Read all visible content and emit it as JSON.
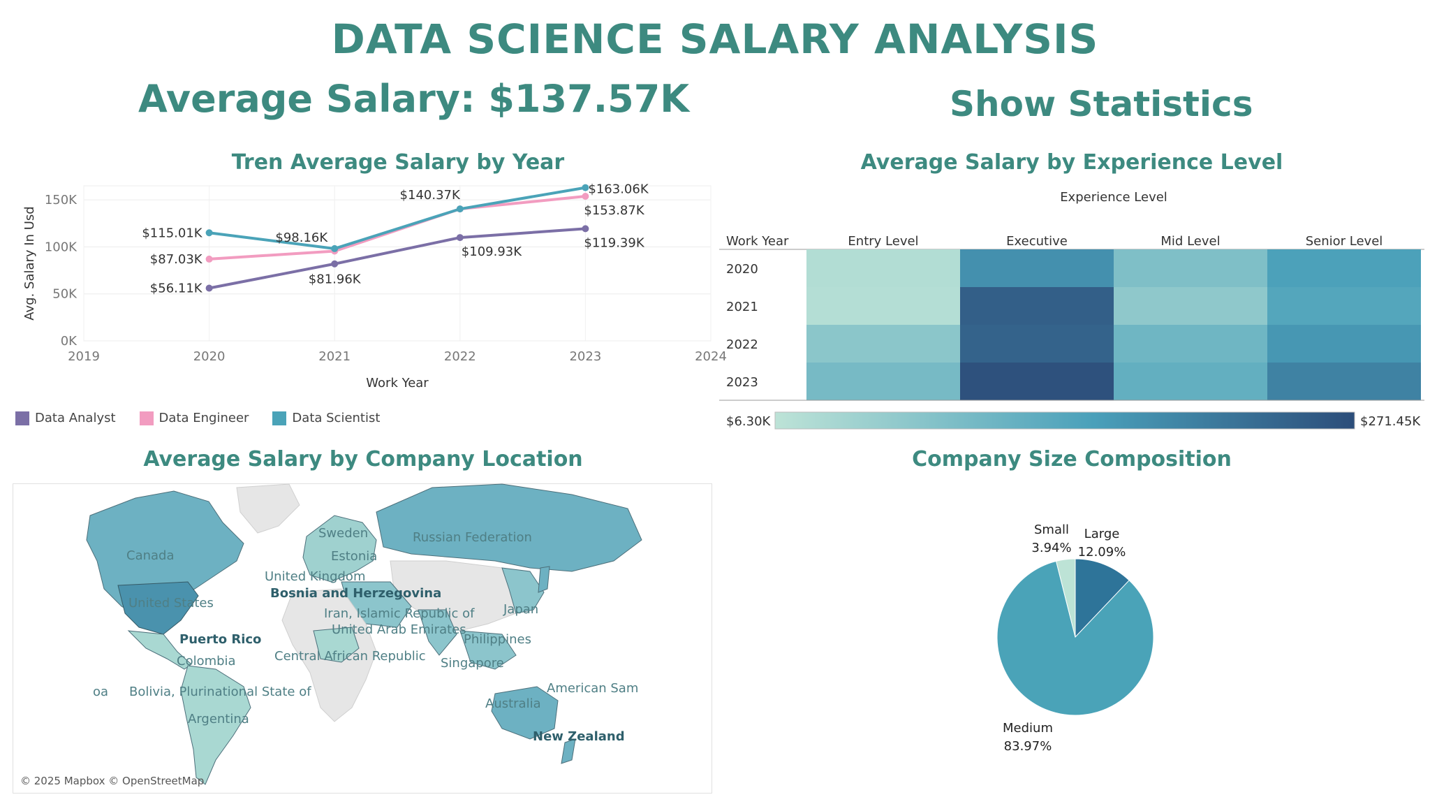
{
  "title": "DATA SCIENCE SALARY ANALYSIS",
  "kpi": {
    "average_salary": "Average Salary: $137.57K"
  },
  "show_statistics": "Show Statistics",
  "colors": {
    "accent": "#3d8a80",
    "data_analyst": "#7b6fa6",
    "data_engineer": "#f29cc0",
    "data_scientist": "#4aa3b8"
  },
  "chart_data": [
    {
      "type": "line",
      "title": "Tren Average Salary by Year",
      "xlabel": "Work Year",
      "ylabel": "Avg. Salary In Usd",
      "x_ticks": [
        "2019",
        "2020",
        "2021",
        "2022",
        "2023",
        "2024"
      ],
      "y_ticks": [
        "0K",
        "50K",
        "100K",
        "150K"
      ],
      "xlim": [
        2019,
        2024
      ],
      "ylim": [
        0,
        165
      ],
      "x": [
        2020,
        2021,
        2022,
        2023
      ],
      "series": [
        {
          "name": "Data Analyst",
          "values": [
            56.11,
            81.96,
            109.93,
            119.39
          ],
          "labels": [
            "$56.11K",
            "$81.96K",
            "$109.93K",
            "$119.39K"
          ],
          "color": "#7b6fa6"
        },
        {
          "name": "Data Engineer",
          "values": [
            87.03,
            95.5,
            140.37,
            153.87
          ],
          "labels": [
            "$87.03K",
            "",
            "",
            "$153.87K"
          ],
          "color": "#f29cc0"
        },
        {
          "name": "Data Scientist",
          "values": [
            115.01,
            98.16,
            140.37,
            163.06
          ],
          "labels": [
            "$115.01K",
            "$98.16K",
            "$140.37K",
            "$163.06K"
          ],
          "color": "#4aa3b8"
        }
      ],
      "legend": "bottom"
    },
    {
      "type": "heatmap",
      "title": "Average Salary by Experience Level",
      "column_header": "Experience Level",
      "row_header": "Work Year",
      "columns": [
        "Entry Level",
        "Executive",
        "Mid Level",
        "Senior Level"
      ],
      "rows": [
        "2020",
        "2021",
        "2022",
        "2023"
      ],
      "values": [
        [
          20,
          175,
          85,
          150
        ],
        [
          18,
          245,
          65,
          140
        ],
        [
          70,
          240,
          105,
          165
        ],
        [
          95,
          265,
          120,
          195
        ]
      ],
      "range_labels": [
        "$6.30K",
        "$271.45K"
      ],
      "range": [
        6.3,
        271.45
      ]
    },
    {
      "type": "pie",
      "title": "Company Size Composition",
      "slices": [
        {
          "name": "Large",
          "percent": 12.09,
          "label": "12.09%",
          "color": "#2e7499"
        },
        {
          "name": "Medium",
          "percent": 83.97,
          "label": "83.97%",
          "color": "#4aa3b8"
        },
        {
          "name": "Small",
          "percent": 3.94,
          "label": "3.94%",
          "color": "#bde3d6"
        }
      ]
    }
  ],
  "map": {
    "title": "Average Salary by Company Location",
    "attribution": "© 2025 Mapbox © OpenStreetMap",
    "labels": {
      "canada": "Canada",
      "united_states": "United States",
      "puerto_rico": "Puerto Rico",
      "colombia": "Colombia",
      "bolivia": "Bolivia, Plurinational State of",
      "argentina": "Argentina",
      "oa": "oa",
      "sweden": "Sweden",
      "estonia": "Estonia",
      "united_kingdom": "United Kingdom",
      "bosnia": "Bosnia and Herzegovina",
      "russia": "Russian Federation",
      "iran": "Iran, Islamic Republic of",
      "uae": "United Arab Emirates",
      "car": "Central African Republic",
      "japan": "Japan",
      "philippines": "Philippines",
      "singapore": "Singapore",
      "australia": "Australia",
      "american_samoa": "American Sam",
      "new_zealand": "New Zealand"
    }
  }
}
